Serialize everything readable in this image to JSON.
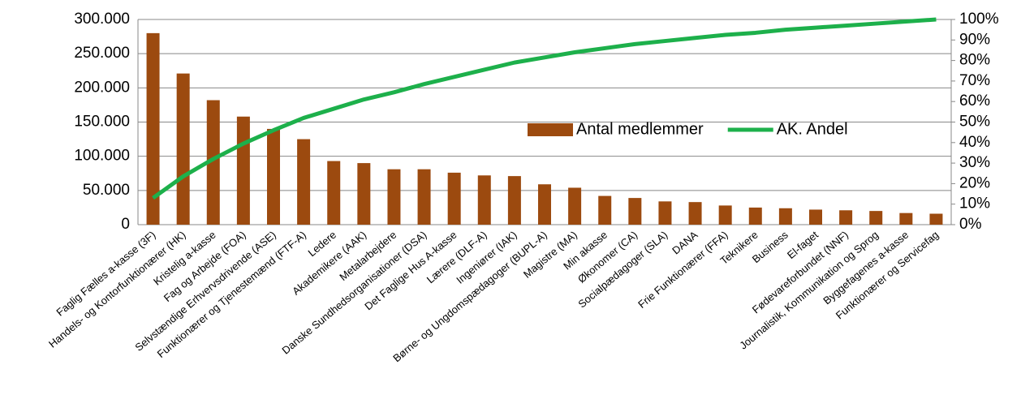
{
  "chart_data": {
    "type": "bar-line",
    "categories": [
      "Faglig Fælles a-kasse (3F)",
      "Handels- og Kontorfunktionærer (HK)",
      "Kristelig a-kasse",
      "Fag og Arbejde (FOA)",
      "Selvstændige Erhvervsdrivende (ASE)",
      "Funktionærer og Tjenestemænd (FTF-A)",
      "Ledere",
      "Akademikere (AAK)",
      "Metalarbejdere",
      "Danske Sundhedsorganisationer (DSA)",
      "Det Faglige Hus A-kasse",
      "Lærere (DLF-A)",
      "Ingeniører (IAK)",
      "Børne- og Ungdomspædagoger (BUPL-A)",
      "Magistre (MA)",
      "Min akasse",
      "Økonomer (CA)",
      "Socialpædagoger (SLA)",
      "DANA",
      "Frie Funktionærer (FFA)",
      "Teknikere",
      "Business",
      "El-faget",
      "Fødevareforbundet (NNF)",
      "Journalistik, Kommunikation og Sprog",
      "Byggefagenes a-kasse",
      "Funktionærer og Servicefag"
    ],
    "series": [
      {
        "name": "Antal medlemmer",
        "type": "bar",
        "color": "#9c4a0f",
        "values": [
          280000,
          221000,
          182000,
          158000,
          140000,
          125000,
          93000,
          90000,
          81000,
          81000,
          76000,
          72000,
          71000,
          59000,
          54000,
          42000,
          39000,
          34000,
          33000,
          28000,
          25000,
          24000,
          22000,
          21000,
          20000,
          17000,
          16000
        ]
      },
      {
        "name": "AK. Andel",
        "type": "line",
        "axis": "y2",
        "color": "#1db04b",
        "values": [
          13,
          23.5,
          32,
          39.5,
          46,
          52,
          56.5,
          61,
          64.5,
          68.5,
          72,
          75.5,
          79,
          81.5,
          84,
          86,
          88,
          89.5,
          91,
          92.5,
          93.5,
          95,
          96,
          97,
          98,
          99,
          100
        ]
      }
    ],
    "ylim": [
      0,
      300000
    ],
    "yticks": [
      0,
      {
        "value": 50000,
        "label": "50.000"
      },
      {
        "value": 100000,
        "label": "100.000"
      },
      {
        "value": 150000,
        "label": "150.000"
      },
      {
        "value": 200000,
        "label": "200.000"
      },
      {
        "value": 250000,
        "label": "250.000"
      },
      {
        "value": 300000,
        "label": "300.000"
      }
    ],
    "y2lim": [
      0,
      100
    ],
    "y2ticks": [
      {
        "value": 0,
        "label": "0%"
      },
      {
        "value": 10,
        "label": "10%"
      },
      {
        "value": 20,
        "label": "20%"
      },
      {
        "value": 30,
        "label": "30%"
      },
      {
        "value": 40,
        "label": "40%"
      },
      {
        "value": 50,
        "label": "50%"
      },
      {
        "value": 60,
        "label": "60%"
      },
      {
        "value": 70,
        "label": "70%"
      },
      {
        "value": 80,
        "label": "80%"
      },
      {
        "value": 90,
        "label": "90%"
      },
      {
        "value": 100,
        "label": "100%"
      }
    ],
    "grid": true,
    "legend": "center-right"
  }
}
